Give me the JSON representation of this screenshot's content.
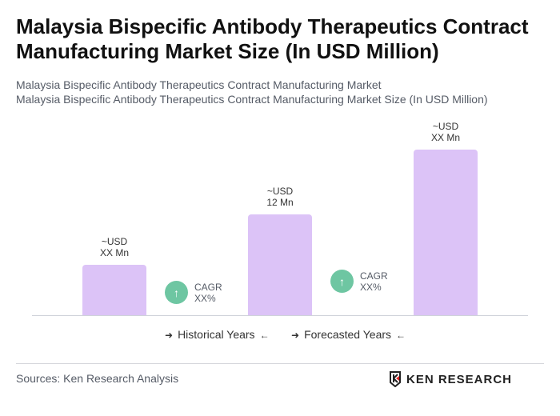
{
  "title": "Malaysia Bispecific Antibody Therapeutics Contract Manufacturing Market Size (In USD Million)",
  "subtitle1": "Malaysia Bispecific Antibody Therapeutics Contract Manufacturing Market",
  "subtitle2": "Malaysia Bispecific Antibody Therapeutics Contract Manufacturing Market Size (In USD Million)",
  "chart_data": {
    "type": "bar",
    "categories": [
      "",
      "",
      ""
    ],
    "values": [
      6,
      12,
      19.7
    ],
    "data_labels": [
      [
        "~USD",
        "XX Mn"
      ],
      [
        "~USD",
        "12 Mn"
      ],
      [
        "~USD",
        "XX Mn"
      ]
    ],
    "bar_color": "#dcc3f7",
    "cagr": [
      {
        "label": "CAGR",
        "value": "XX%"
      },
      {
        "label": "CAGR",
        "value": "XX%"
      }
    ],
    "cagr_color": "#6ec6a2",
    "legend": [
      "Historical Years",
      "Forecasted Years"
    ]
  },
  "source": "Sources: Ken Research Analysis",
  "logo": "KEN RESEARCH"
}
